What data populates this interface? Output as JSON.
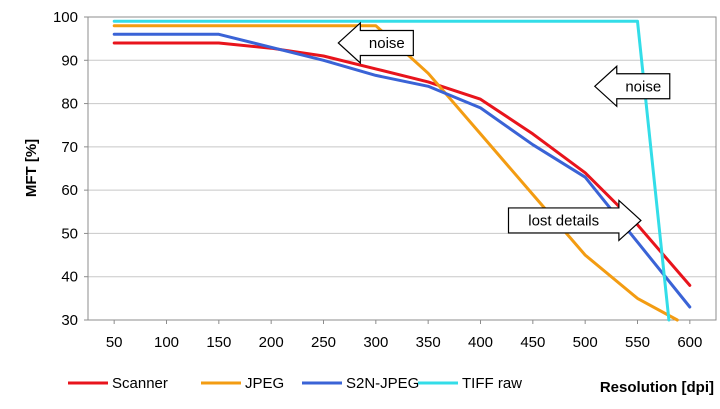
{
  "chart_data": {
    "type": "line",
    "xlabel": "Resolution [dpi]",
    "ylabel": "MFT [%]",
    "ylim": [
      30,
      100
    ],
    "yticks": [
      30,
      40,
      50,
      60,
      70,
      80,
      90,
      100
    ],
    "xticks": [
      50,
      100,
      150,
      200,
      250,
      300,
      350,
      400,
      450,
      500,
      550,
      600
    ],
    "xlim": [
      25,
      625
    ],
    "grid": "horizontal",
    "legend_position": "bottom",
    "series": [
      {
        "name": "Scanner",
        "color": "#e8141c",
        "points": [
          [
            50,
            94
          ],
          [
            150,
            94
          ],
          [
            200,
            92.8
          ],
          [
            250,
            91
          ],
          [
            300,
            88
          ],
          [
            350,
            85
          ],
          [
            400,
            81
          ],
          [
            450,
            73
          ],
          [
            500,
            64
          ],
          [
            550,
            52
          ],
          [
            600,
            38
          ]
        ]
      },
      {
        "name": "JPEG",
        "color": "#f39c12",
        "points": [
          [
            50,
            98
          ],
          [
            100,
            98
          ],
          [
            150,
            98
          ],
          [
            200,
            98
          ],
          [
            250,
            98
          ],
          [
            300,
            98
          ],
          [
            350,
            87
          ],
          [
            400,
            73
          ],
          [
            450,
            59
          ],
          [
            500,
            45
          ],
          [
            550,
            35
          ],
          [
            588,
            30
          ]
        ]
      },
      {
        "name": "S2N-JPEG",
        "color": "#3a63d6",
        "points": [
          [
            50,
            96
          ],
          [
            150,
            96
          ],
          [
            200,
            93
          ],
          [
            250,
            90
          ],
          [
            300,
            86.5
          ],
          [
            350,
            84
          ],
          [
            400,
            79
          ],
          [
            450,
            70.5
          ],
          [
            500,
            63
          ],
          [
            550,
            48
          ],
          [
            600,
            33
          ]
        ]
      },
      {
        "name": "TIFF raw",
        "color": "#33dde8",
        "points": [
          [
            50,
            99
          ],
          [
            100,
            99
          ],
          [
            200,
            99
          ],
          [
            300,
            99
          ],
          [
            400,
            99
          ],
          [
            500,
            99
          ],
          [
            550,
            99
          ],
          [
            580,
            30
          ]
        ]
      }
    ],
    "annotations": [
      {
        "text": "noise",
        "direction": "left",
        "x": 300,
        "y": 94
      },
      {
        "text": "noise",
        "direction": "left",
        "x": 545,
        "y": 84
      },
      {
        "text": "lost details",
        "direction": "right",
        "x": 490,
        "y": 53
      }
    ]
  }
}
